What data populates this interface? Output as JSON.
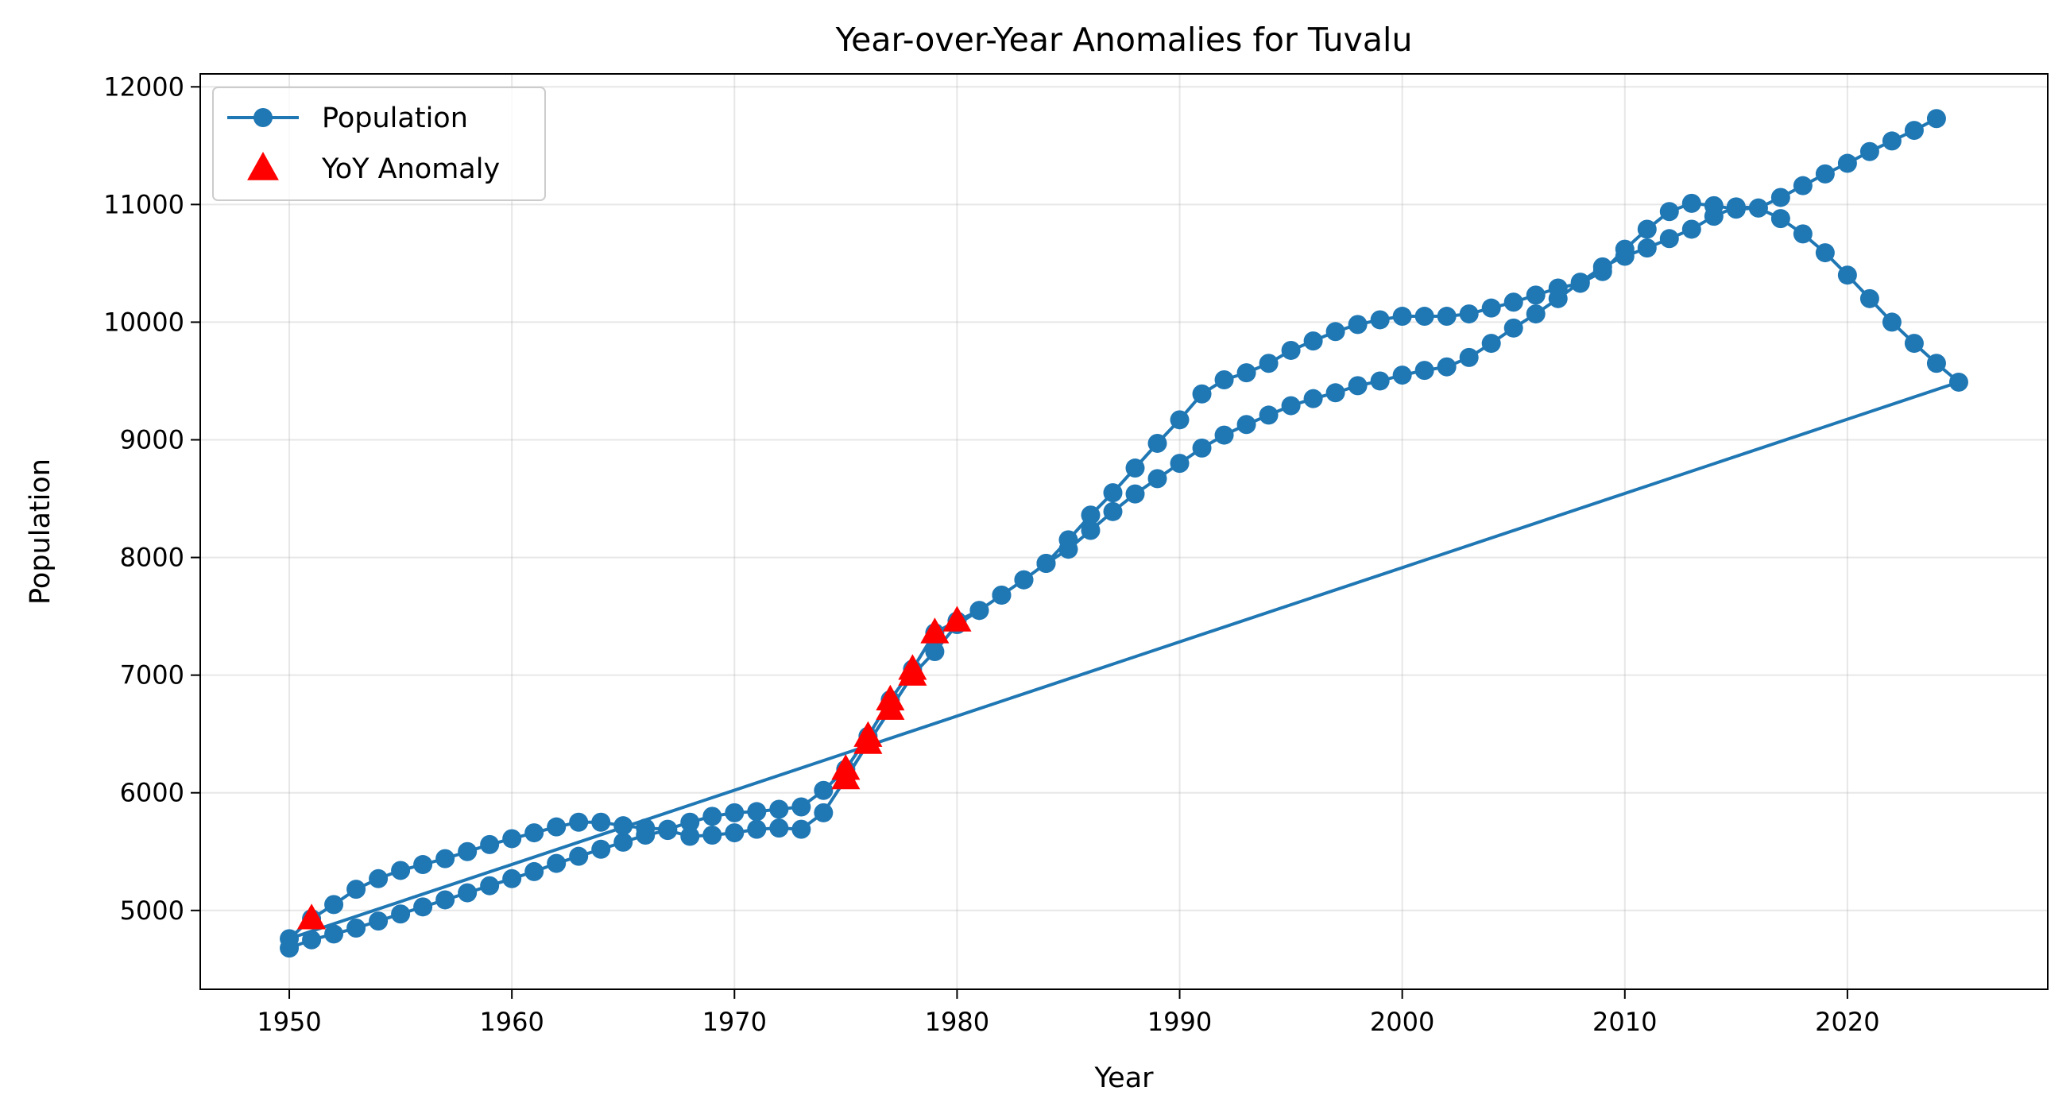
{
  "chart_data": {
    "type": "line",
    "title": "Year-over-Year Anomalies for Tuvalu",
    "xlabel": "Year",
    "ylabel": "Population",
    "xlim": [
      1946,
      2029
    ],
    "ylim": [
      4330,
      12110
    ],
    "xticks": [
      1950,
      1960,
      1970,
      1980,
      1990,
      2000,
      2010,
      2020
    ],
    "yticks": [
      5000,
      6000,
      7000,
      8000,
      9000,
      10000,
      11000,
      12000
    ],
    "grid": true,
    "legend_position": "top-left",
    "colors": {
      "line": "#1f77b4",
      "anomaly": "#ff0000"
    },
    "series": [
      {
        "name": "Population",
        "marker": "circle",
        "x": [
          1950,
          1951,
          1952,
          1953,
          1954,
          1955,
          1956,
          1957,
          1958,
          1959,
          1960,
          1961,
          1962,
          1963,
          1964,
          1965,
          1966,
          1967,
          1968,
          1969,
          1970,
          1971,
          1972,
          1973,
          1974,
          1975,
          1976,
          1977,
          1978,
          1979,
          1980,
          1981,
          1982,
          1983,
          1984,
          1985,
          1986,
          1987,
          1988,
          1989,
          1990,
          1991,
          1992,
          1993,
          1994,
          1995,
          1996,
          1997,
          1998,
          1999,
          2000,
          2001,
          2002,
          2003,
          2004,
          2005,
          2006,
          2007,
          2008,
          2009,
          2010,
          2011,
          2012,
          2013,
          2014,
          2015,
          2016,
          2017,
          2018,
          2019,
          2020,
          2021,
          2022,
          2023,
          2024,
          2025,
          1950,
          1951,
          1952,
          1953,
          1954,
          1955,
          1956,
          1957,
          1958,
          1959,
          1960,
          1961,
          1962,
          1963,
          1964,
          1965,
          1966,
          1967,
          1968,
          1969,
          1970,
          1971,
          1972,
          1973,
          1974,
          1975,
          1976,
          1977,
          1978,
          1979,
          1980,
          1981,
          1982,
          1983,
          1984,
          1985,
          1986,
          1987,
          1988,
          1989,
          1990,
          1991,
          1992,
          1993,
          1994,
          1995,
          1996,
          1997,
          1998,
          1999,
          2000,
          2001,
          2002,
          2003,
          2004,
          2005,
          2006,
          2007,
          2008,
          2009,
          2010,
          2011,
          2012,
          2013,
          2014,
          2015,
          2016,
          2017,
          2018,
          2019,
          2020,
          2021,
          2022,
          2023,
          2024
        ],
        "y": [
          4680,
          4750,
          4800,
          4850,
          4910,
          4970,
          5030,
          5090,
          5150,
          5210,
          5270,
          5330,
          5400,
          5460,
          5520,
          5580,
          5640,
          5680,
          5630,
          5640,
          5660,
          5690,
          5700,
          5690,
          5830,
          6120,
          6420,
          6710,
          7000,
          7200,
          7430,
          7550,
          7680,
          7810,
          7950,
          8070,
          8230,
          8390,
          8540,
          8670,
          8800,
          8930,
          9040,
          9130,
          9210,
          9290,
          9350,
          9400,
          9460,
          9500,
          9550,
          9590,
          9620,
          9700,
          9820,
          9950,
          10070,
          10200,
          10340,
          10470,
          10560,
          10630,
          10710,
          10790,
          10900,
          10980,
          10970,
          10880,
          10750,
          10590,
          10400,
          10200,
          10000,
          9820,
          9650,
          9490,
          4760,
          4930,
          5050,
          5180,
          5270,
          5340,
          5390,
          5440,
          5500,
          5560,
          5610,
          5660,
          5710,
          5750,
          5750,
          5720,
          5700,
          5690,
          5750,
          5800,
          5830,
          5840,
          5860,
          5880,
          6020,
          6200,
          6480,
          6790,
          7050,
          7360,
          7460,
          7550,
          7680,
          7810,
          7950,
          8150,
          8360,
          8550,
          8760,
          8970,
          9170,
          9390,
          9510,
          9570,
          9650,
          9760,
          9840,
          9920,
          9980,
          10020,
          10050,
          10050,
          10050,
          10070,
          10120,
          10170,
          10230,
          10290,
          10330,
          10430,
          10620,
          10790,
          10940,
          11010,
          10990,
          10960,
          10970,
          11060,
          11160,
          11260,
          11350,
          11450,
          11540,
          11630,
          11730
        ]
      },
      {
        "name": "YoY Anomaly",
        "marker": "triangle",
        "x": [
          1951,
          1975,
          1975,
          1976,
          1976,
          1977,
          1977,
          1978,
          1978,
          1979,
          1980
        ],
        "y": [
          4930,
          6120,
          6200,
          6420,
          6480,
          6710,
          6790,
          7000,
          7050,
          7360,
          7460
        ]
      }
    ]
  }
}
